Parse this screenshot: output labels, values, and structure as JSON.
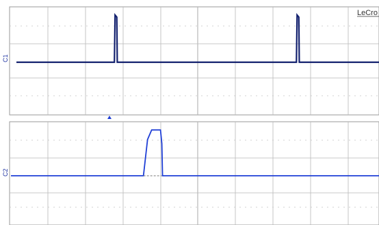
{
  "brand": "LeCro",
  "top_trace": {
    "channel_label": "C1",
    "color": "#12206e",
    "baseline_level": 0.0,
    "pulse_level": 1.0,
    "pulses": [
      0.274,
      0.776
    ]
  },
  "bottom_trace": {
    "channel_label": "C2",
    "color": "#1f3fd6",
    "baseline_level": 0.0,
    "pulse_level": 1.0,
    "pulse_start": 0.36,
    "pulse_end": 0.41
  },
  "trigger_marker_color": "#1f3fd6",
  "grid_color": "#b8b8b8",
  "frame_color": "#9a9a9a"
}
